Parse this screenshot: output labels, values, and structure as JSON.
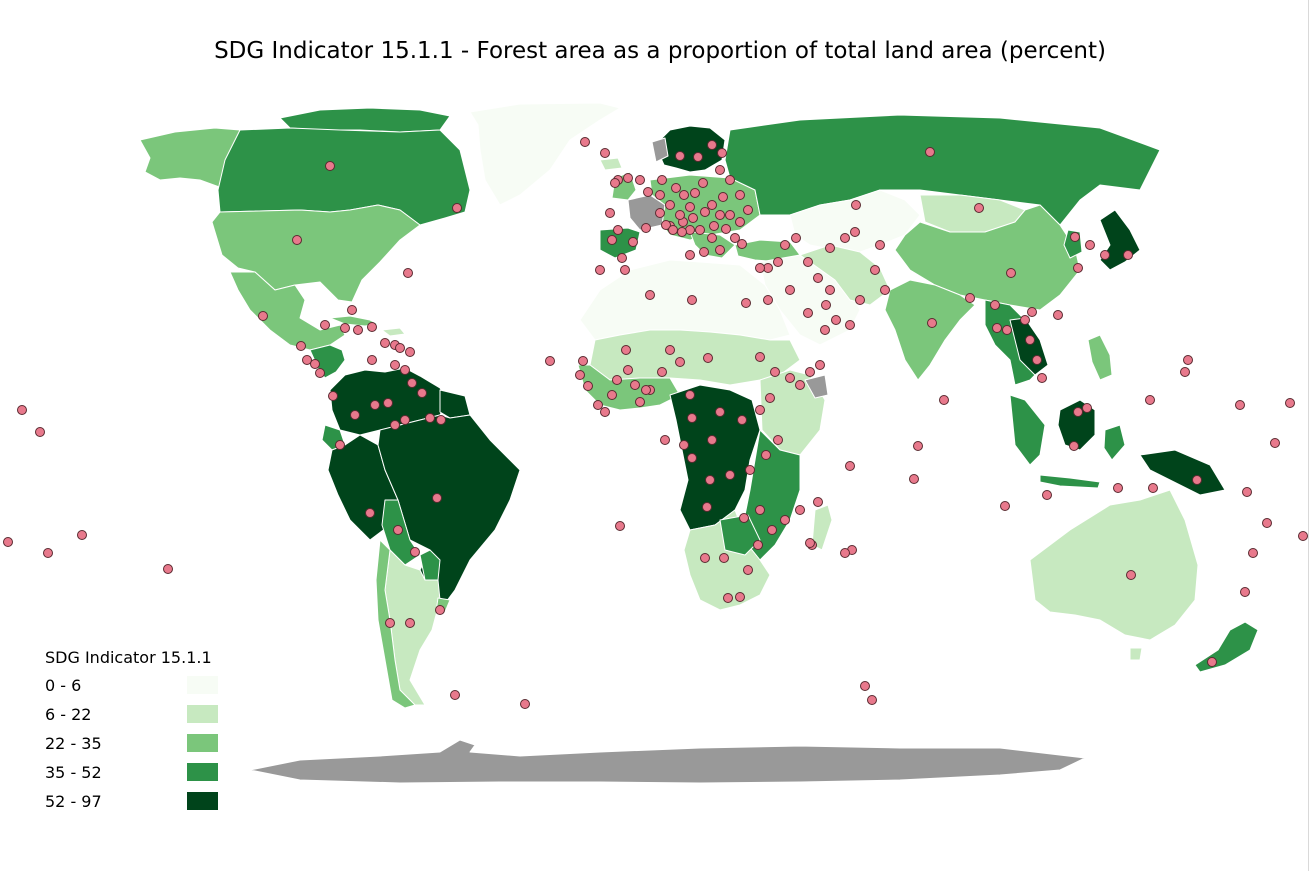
{
  "map": {
    "title": "SDG Indicator 15.1.1 - Forest area as a proportion of total land area (percent)"
  },
  "legend": {
    "title": "SDG Indicator 15.1.1",
    "classes": [
      {
        "label": "0 - 6",
        "color": "#f7fcf5"
      },
      {
        "label": "6 - 22",
        "color": "#c7e9c0"
      },
      {
        "label": "22 - 35",
        "color": "#7bc67b"
      },
      {
        "label": "35 - 52",
        "color": "#2d9248"
      },
      {
        "label": "52 - 97",
        "color": "#00441b"
      }
    ]
  },
  "colors": {
    "no_data": "#999999",
    "marker_fill": "#e8798c",
    "marker_stroke": "#5a2a30",
    "border": "#ffffff"
  }
}
